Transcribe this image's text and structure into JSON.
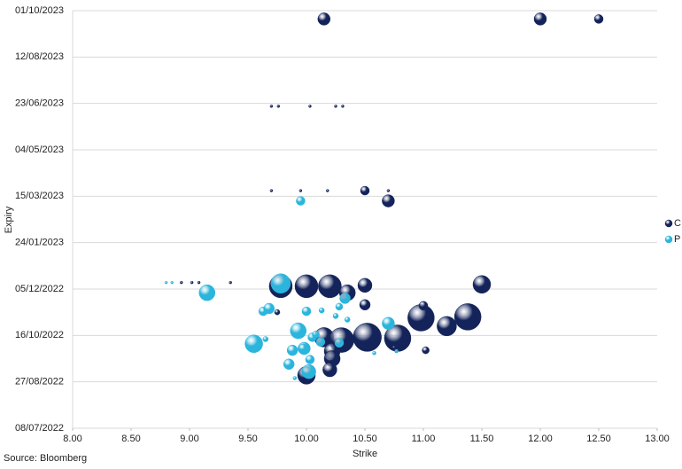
{
  "chart_data": {
    "type": "bubble",
    "x_label": "Strike",
    "y_label": "Expiry",
    "source": "Source: Bloomberg",
    "xlim": [
      8,
      13
    ],
    "xticks": [
      {
        "value": 8,
        "label": "8.00"
      },
      {
        "value": 8.5,
        "label": "8.50"
      },
      {
        "value": 9,
        "label": "9.00"
      },
      {
        "value": 9.5,
        "label": "9.50"
      },
      {
        "value": 10,
        "label": "10.00"
      },
      {
        "value": 10.5,
        "label": "10.50"
      },
      {
        "value": 11,
        "label": "11.00"
      },
      {
        "value": 11.5,
        "label": "11.50"
      },
      {
        "value": 12,
        "label": "12.00"
      },
      {
        "value": 12.5,
        "label": "12.50"
      },
      {
        "value": 13,
        "label": "13.00"
      }
    ],
    "ylim": [
      "08/07/2022",
      "01/10/2023"
    ],
    "yticks": [
      "08/07/2022",
      "27/08/2022",
      "16/10/2022",
      "05/12/2022",
      "24/01/2023",
      "15/03/2023",
      "04/05/2023",
      "23/06/2023",
      "12/08/2023",
      "01/10/2023"
    ],
    "grid": true,
    "legend": "right",
    "series": [
      {
        "name": "C",
        "color": "#14245a",
        "x": [
          10.15,
          12.0,
          12.5,
          9.7,
          9.76,
          10.03,
          10.25,
          10.31,
          9.7,
          9.95,
          10.18,
          10.5,
          10.7,
          10.7,
          8.93,
          9.02,
          9.08,
          9.35,
          9.78,
          10.0,
          10.2,
          10.35,
          10.5,
          11.5,
          9.75,
          10.5,
          10.98,
          11.0,
          11.38,
          11.2,
          10.15,
          10.3,
          10.52,
          10.78,
          10.22,
          10.22,
          10.2,
          10.0,
          11.02,
          10.75
        ],
        "values": [
          "22/09/2023",
          "22/09/2023",
          "22/09/2023",
          "20/06/2023",
          "20/06/2023",
          "20/06/2023",
          "20/06/2023",
          "20/06/2023",
          "21/03/2023",
          "21/03/2023",
          "21/03/2023",
          "21/03/2023",
          "21/03/2023",
          "10/03/2023",
          "12/12/2022",
          "12/12/2022",
          "12/12/2022",
          "12/12/2022",
          "08/12/2022",
          "08/12/2022",
          "08/12/2022",
          "01/12/2022",
          "09/12/2022",
          "10/12/2022",
          "10/11/2022",
          "18/11/2022",
          "04/11/2022",
          "17/11/2022",
          "05/11/2022",
          "26/10/2022",
          "14/10/2022",
          "11/10/2022",
          "14/10/2022",
          "13/10/2022",
          "29/09/2022",
          "21/09/2022",
          "09/09/2022",
          "03/09/2022",
          "30/09/2022",
          "03/10/2022"
        ],
        "sizes": [
          7,
          7,
          5,
          1.5,
          1.5,
          1.5,
          1.5,
          1.5,
          1.5,
          1.5,
          1.5,
          5,
          1.5,
          7,
          1.5,
          1.5,
          1.5,
          1.5,
          13,
          13,
          13,
          9,
          8,
          10,
          3,
          6,
          15,
          5,
          15,
          11,
          11,
          14,
          16,
          15,
          9,
          9,
          8,
          10,
          4,
          2
        ]
      },
      {
        "name": "P",
        "color": "#2bb5dc",
        "x": [
          9.95,
          8.8,
          8.85,
          9.15,
          9.78,
          9.63,
          9.68,
          10.0,
          10.13,
          10.33,
          10.28,
          10.25,
          10.35,
          10.7,
          9.55,
          9.65,
          9.93,
          9.98,
          9.88,
          10.05,
          10.08,
          10.12,
          10.03,
          9.85,
          10.02,
          9.97,
          10.28,
          10.58,
          10.77,
          9.9
        ],
        "values": [
          "10/03/2023",
          "12/12/2022",
          "12/12/2022",
          "01/12/2022",
          "11/12/2022",
          "11/11/2022",
          "14/11/2022",
          "11/11/2022",
          "12/11/2022",
          "25/11/2022",
          "16/11/2022",
          "06/11/2022",
          "02/11/2022",
          "29/10/2022",
          "07/10/2022",
          "12/10/2022",
          "21/10/2022",
          "02/10/2022",
          "30/09/2022",
          "14/10/2022",
          "17/10/2022",
          "09/10/2022",
          "20/09/2022",
          "15/09/2022",
          "07/09/2022",
          "02/10/2022",
          "08/10/2022",
          "27/09/2022",
          "29/09/2022",
          "31/08/2022"
        ],
        "sizes": [
          5,
          1.5,
          1.5,
          9,
          11,
          5,
          6,
          5,
          3,
          6,
          4,
          3,
          3,
          7,
          10,
          3,
          9,
          7,
          6,
          5,
          4,
          5,
          5,
          6,
          8,
          5,
          5,
          2,
          2,
          2
        ]
      }
    ]
  }
}
